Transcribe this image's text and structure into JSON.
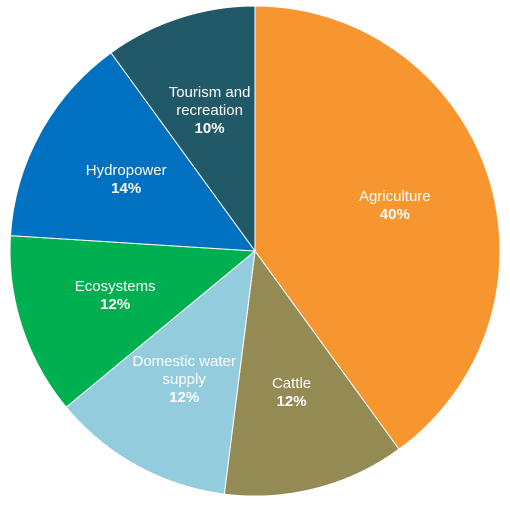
{
  "chart_data": {
    "type": "pie",
    "categories": [
      "Agriculture",
      "Cattle",
      "Domestic water supply",
      "Ecosystems",
      "Hydropower",
      "Tourism and recreation"
    ],
    "values": [
      40,
      12,
      12,
      12,
      14,
      10
    ],
    "value_labels": [
      "40%",
      "12%",
      "12%",
      "12%",
      "14%",
      "10%"
    ],
    "colors": [
      "#f7962e",
      "#948a54",
      "#93cddd",
      "#00b050",
      "#0070c0",
      "#215968"
    ]
  }
}
